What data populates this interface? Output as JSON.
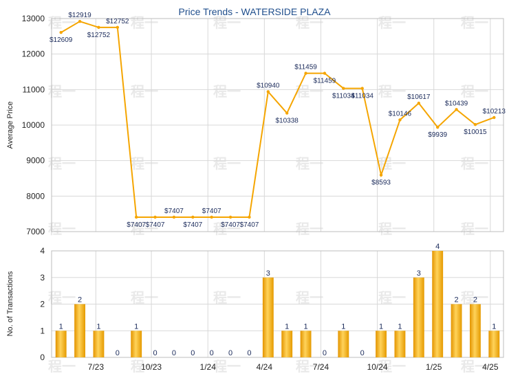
{
  "chart_data": [
    {
      "type": "line",
      "title": "Price Trends - WATERSIDE PLAZA",
      "xlabel": "",
      "ylabel": "Average Price",
      "ylim": [
        7000,
        13000
      ],
      "yticks": [
        "7000",
        "8000",
        "9000",
        "10000",
        "11000",
        "12000",
        "13000"
      ],
      "xticks": [
        "7/23",
        "10/23",
        "1/24",
        "4/24",
        "7/24",
        "10/24",
        "1/25",
        "4/25"
      ],
      "grid": true,
      "color": "#f5a500",
      "values": [
        12609,
        12919,
        12752,
        12752,
        7407,
        7407,
        7407,
        7407,
        7407,
        7407,
        7407,
        10940,
        10338,
        11459,
        11459,
        11034,
        11034,
        8593,
        10146,
        10617,
        9939,
        10439,
        10015,
        10213
      ],
      "labels": [
        "$12609",
        "$12919",
        "$12752",
        "$12752",
        "$7407",
        "$7407",
        "$7407",
        "$7407",
        "$7407",
        "$7407",
        "$7407",
        "$10940",
        "$10338",
        "$11459",
        "$11459",
        "$11034",
        "$11034",
        "$8593",
        "$10146",
        "$10617",
        "$9939",
        "$10439",
        "$10015",
        "$10213"
      ]
    },
    {
      "type": "bar",
      "xlabel": "",
      "ylabel": "No. of Transactions",
      "ylim": [
        0,
        4
      ],
      "yticks": [
        "0",
        "1",
        "2",
        "3",
        "4"
      ],
      "xticks": [
        "7/23",
        "10/23",
        "1/24",
        "4/24",
        "7/24",
        "10/24",
        "1/25",
        "4/25"
      ],
      "grid": true,
      "color": "#f5a500",
      "values": [
        1,
        2,
        1,
        0,
        1,
        0,
        0,
        0,
        0,
        0,
        0,
        3,
        1,
        1,
        0,
        1,
        0,
        1,
        1,
        3,
        4,
        2,
        2,
        1
      ]
    }
  ],
  "watermark": "程一"
}
